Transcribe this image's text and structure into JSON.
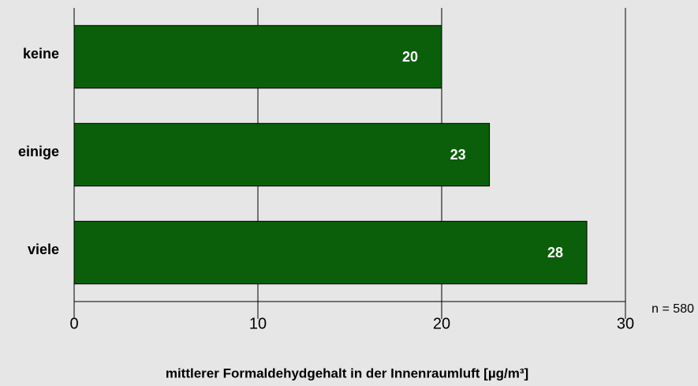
{
  "chart_data": {
    "type": "hbar",
    "categories": [
      "keine",
      "einige",
      "viele"
    ],
    "values": [
      20,
      22.6,
      27.9
    ],
    "value_labels": [
      "20",
      "23",
      "28"
    ],
    "color": "#0b5f0b",
    "xlim": [
      0,
      30
    ],
    "xticks": [
      0,
      10,
      20,
      30
    ],
    "grid": true,
    "xlabel": "mittlerer Formaldehydgehalt in der Innenraumluft [µg/m³]",
    "annotation": "n = 580"
  }
}
